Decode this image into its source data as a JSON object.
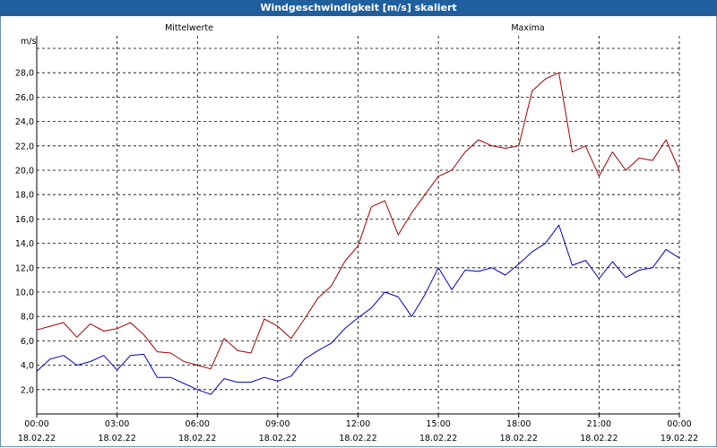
{
  "window": {
    "title": "Windgeschwindigkeit [m/s] skaliert"
  },
  "chart_data": {
    "type": "line",
    "title": "Windgeschwindigkeit [m/s] skaliert",
    "ylabel": "m/s",
    "xlabel": "",
    "ylim": [
      0,
      30
    ],
    "yticks": [
      "2,0",
      "4,0",
      "6,0",
      "8,0",
      "10,0",
      "12,0",
      "14,0",
      "16,0",
      "18,0",
      "20,0",
      "22,0",
      "24,0",
      "26,0",
      "28,0"
    ],
    "xlim": [
      0,
      24
    ],
    "xticks": [
      {
        "time": "00:00",
        "date": "18.02.22"
      },
      {
        "time": "03:00",
        "date": "18.02.22"
      },
      {
        "time": "06:00",
        "date": "18.02.22"
      },
      {
        "time": "09:00",
        "date": "18.02.22"
      },
      {
        "time": "12:00",
        "date": "18.02.22"
      },
      {
        "time": "15:00",
        "date": "18.02.22"
      },
      {
        "time": "18:00",
        "date": "18.02.22"
      },
      {
        "time": "21:00",
        "date": "18.02.22"
      },
      {
        "time": "00:00",
        "date": "19.02.22"
      }
    ],
    "grid": true,
    "series": [
      {
        "name": "Mittelwerte",
        "color": "#0000c0",
        "x": [
          0,
          0.5,
          1,
          1.5,
          2,
          2.5,
          3,
          3.5,
          4,
          4.5,
          5,
          5.5,
          6,
          6.5,
          7,
          7.5,
          8,
          8.5,
          9,
          9.5,
          10,
          10.5,
          11,
          11.5,
          12,
          12.5,
          13,
          13.5,
          14,
          14.5,
          15,
          15.5,
          16,
          16.5,
          17,
          17.5,
          18,
          18.5,
          19,
          19.5,
          20,
          20.5,
          21,
          21.5,
          22,
          22.5,
          23,
          23.5,
          24
        ],
        "values": [
          3.5,
          4.5,
          4.8,
          4.0,
          4.3,
          4.8,
          3.6,
          4.8,
          4.9,
          3.0,
          3.0,
          2.5,
          2.0,
          1.6,
          2.9,
          2.6,
          2.6,
          3.0,
          2.7,
          3.1,
          4.5,
          5.2,
          5.8,
          7.0,
          7.9,
          8.7,
          10.0,
          9.6,
          8.0,
          9.8,
          12.0,
          10.2,
          11.8,
          11.7,
          12.0,
          11.4,
          12.3,
          13.3,
          14.0,
          15.5,
          12.2,
          12.6,
          11.1,
          12.5,
          11.2,
          11.8,
          12.0,
          13.5,
          12.8
        ]
      },
      {
        "name": "Maxima",
        "color": "#a00000",
        "x": [
          0,
          0.5,
          1,
          1.5,
          2,
          2.5,
          3,
          3.5,
          4,
          4.5,
          5,
          5.5,
          6,
          6.5,
          7,
          7.5,
          8,
          8.5,
          9,
          9.5,
          10,
          10.5,
          11,
          11.5,
          12,
          12.5,
          13,
          13.5,
          14,
          14.5,
          15,
          15.5,
          16,
          16.5,
          17,
          17.5,
          18,
          18.5,
          19,
          19.5,
          20,
          20.5,
          21,
          21.5,
          22,
          22.5,
          23,
          23.5,
          24
        ],
        "values": [
          6.9,
          7.2,
          7.5,
          6.3,
          7.4,
          6.8,
          7.0,
          7.5,
          6.5,
          5.1,
          5.0,
          4.3,
          4.0,
          3.7,
          6.2,
          5.2,
          5.0,
          7.8,
          7.2,
          6.2,
          7.8,
          9.5,
          10.5,
          12.5,
          13.8,
          17.0,
          17.5,
          14.7,
          16.5,
          18.0,
          19.5,
          20.0,
          21.5,
          22.5,
          22.0,
          21.8,
          22.0,
          26.5,
          27.5,
          28.0,
          21.5,
          22.0,
          19.5,
          21.5,
          20.0,
          21.0,
          20.8,
          22.5,
          20.0
        ]
      }
    ]
  }
}
